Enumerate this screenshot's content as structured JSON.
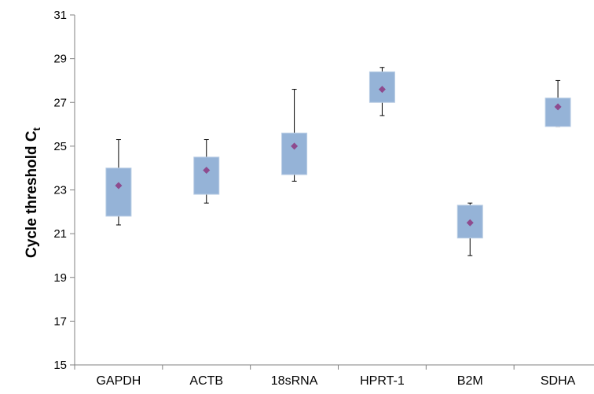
{
  "chart_data": {
    "type": "box",
    "title": "",
    "xlabel": "",
    "ylabel": "Cycle threshold C",
    "ylabel_subscript": "t",
    "ylim": [
      15,
      31
    ],
    "yticks": [
      15,
      17,
      19,
      21,
      23,
      25,
      27,
      29,
      31
    ],
    "grid": false,
    "legend": "none",
    "colors": {
      "box": "#95b3d7",
      "box_edge": "#b8cce4",
      "mean_marker": "#8e4b8e",
      "whisker": "#000000",
      "axis": "#808080"
    },
    "categories": [
      "GAPDH",
      "ACTB",
      "18sRNA",
      "HPRT-1",
      "B2M",
      "SDHA"
    ],
    "series": [
      {
        "category": "GAPDH",
        "min": 21.4,
        "q1": 21.8,
        "q3": 24.0,
        "max": 25.3,
        "mean": 23.2
      },
      {
        "category": "ACTB",
        "min": 22.4,
        "q1": 22.8,
        "q3": 24.5,
        "max": 25.3,
        "mean": 23.9
      },
      {
        "category": "18sRNA",
        "min": 23.4,
        "q1": 23.7,
        "q3": 25.6,
        "max": 27.6,
        "mean": 25.0
      },
      {
        "category": "HPRT-1",
        "min": 26.4,
        "q1": 27.0,
        "q3": 28.4,
        "max": 28.6,
        "mean": 27.6
      },
      {
        "category": "B2M",
        "min": 20.0,
        "q1": 20.8,
        "q3": 22.3,
        "max": 22.4,
        "mean": 21.5
      },
      {
        "category": "SDHA",
        "min": 25.9,
        "q1": 25.9,
        "q3": 27.2,
        "max": 28.0,
        "mean": 26.8
      }
    ]
  }
}
